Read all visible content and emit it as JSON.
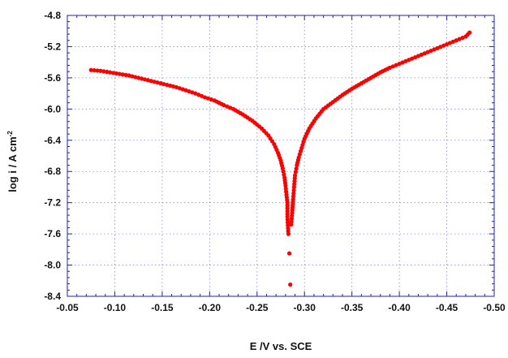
{
  "chart_data": {
    "type": "scatter",
    "title": "",
    "xlabel": "E /V  vs. SCE",
    "ylabel": {
      "main": "log i / A cm",
      "sup": "-2"
    },
    "xlim": [
      -0.05,
      -0.5
    ],
    "ylim": [
      -8.4,
      -4.8
    ],
    "x_ticks": [
      -0.05,
      -0.1,
      -0.15,
      -0.2,
      -0.25,
      -0.3,
      -0.35,
      -0.4,
      -0.45,
      -0.5
    ],
    "x_tick_labels": [
      "-0.05",
      "-0.10",
      "-0.15",
      "-0.20",
      "-0.25",
      "-0.30",
      "-0.35",
      "-0.40",
      "-0.45",
      "-0.50"
    ],
    "y_ticks": [
      -4.8,
      -5.2,
      -5.6,
      -6.0,
      -6.4,
      -6.8,
      -7.2,
      -7.6,
      -8.0,
      -8.4
    ],
    "y_tick_labels": [
      "-4.8",
      "-5.2",
      "-5.6",
      "-6.0",
      "-6.4",
      "-6.8",
      "-7.2",
      "-7.6",
      "-8.0",
      "-8.4"
    ],
    "grid": true,
    "marker_color": "#ff0000",
    "series": [
      {
        "points": [
          [
            -0.075,
            -5.5
          ],
          [
            -0.085,
            -5.51
          ],
          [
            -0.095,
            -5.53
          ],
          [
            -0.105,
            -5.55
          ],
          [
            -0.115,
            -5.57
          ],
          [
            -0.125,
            -5.6
          ],
          [
            -0.135,
            -5.63
          ],
          [
            -0.145,
            -5.66
          ],
          [
            -0.155,
            -5.69
          ],
          [
            -0.165,
            -5.72
          ],
          [
            -0.175,
            -5.76
          ],
          [
            -0.185,
            -5.8
          ],
          [
            -0.195,
            -5.85
          ],
          [
            -0.205,
            -5.89
          ],
          [
            -0.215,
            -5.95
          ],
          [
            -0.225,
            -6.0
          ],
          [
            -0.235,
            -6.07
          ],
          [
            -0.245,
            -6.15
          ],
          [
            -0.255,
            -6.25
          ],
          [
            -0.262,
            -6.34
          ],
          [
            -0.268,
            -6.45
          ],
          [
            -0.272,
            -6.56
          ],
          [
            -0.275,
            -6.66
          ],
          [
            -0.277,
            -6.76
          ],
          [
            -0.279,
            -6.88
          ],
          [
            -0.28,
            -6.98
          ],
          [
            -0.281,
            -7.1
          ],
          [
            -0.282,
            -7.2
          ],
          [
            -0.282,
            -7.38
          ],
          [
            -0.283,
            -7.6
          ],
          [
            -0.284,
            -7.85
          ],
          [
            -0.285,
            -8.25
          ],
          [
            -0.286,
            -7.48
          ],
          [
            -0.287,
            -7.33
          ],
          [
            -0.288,
            -7.16
          ],
          [
            -0.289,
            -7.0
          ],
          [
            -0.29,
            -6.85
          ],
          [
            -0.292,
            -6.72
          ],
          [
            -0.294,
            -6.62
          ],
          [
            -0.297,
            -6.5
          ],
          [
            -0.3,
            -6.38
          ],
          [
            -0.305,
            -6.25
          ],
          [
            -0.312,
            -6.12
          ],
          [
            -0.32,
            -6.0
          ],
          [
            -0.33,
            -5.91
          ],
          [
            -0.34,
            -5.82
          ],
          [
            -0.35,
            -5.74
          ],
          [
            -0.36,
            -5.67
          ],
          [
            -0.37,
            -5.6
          ],
          [
            -0.38,
            -5.53
          ],
          [
            -0.39,
            -5.47
          ],
          [
            -0.4,
            -5.42
          ],
          [
            -0.41,
            -5.37
          ],
          [
            -0.42,
            -5.32
          ],
          [
            -0.43,
            -5.27
          ],
          [
            -0.44,
            -5.22
          ],
          [
            -0.45,
            -5.17
          ],
          [
            -0.46,
            -5.12
          ],
          [
            -0.47,
            -5.07
          ],
          [
            -0.474,
            -5.02
          ]
        ]
      }
    ]
  }
}
